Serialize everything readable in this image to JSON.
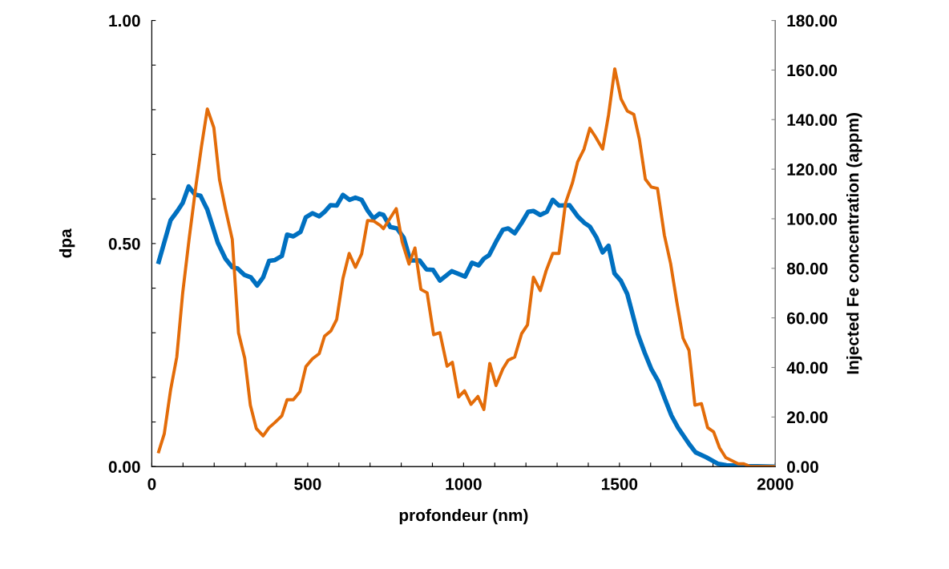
{
  "chart_data": {
    "type": "line",
    "xlabel": "profondeur (nm)",
    "ylabel": "dpa",
    "y2label": "Injected Fe concentration (appm)",
    "xlim": [
      0,
      2000
    ],
    "ylim": [
      0,
      1
    ],
    "y2lim": [
      0,
      180
    ],
    "xticks": [
      0,
      {
        "value": 100,
        "label": null
      },
      {
        "value": 200,
        "label": null
      },
      {
        "value": 300,
        "label": null
      },
      {
        "value": 400,
        "label": null
      },
      500,
      {
        "value": 600,
        "label": null
      },
      {
        "value": 700,
        "label": null
      },
      {
        "value": 800,
        "label": null
      },
      {
        "value": 900,
        "label": null
      },
      1000,
      {
        "value": 1100,
        "label": null
      },
      {
        "value": 1200,
        "label": null
      },
      {
        "value": 1300,
        "label": null
      },
      {
        "value": 1400,
        "label": null
      },
      1500,
      {
        "value": 1600,
        "label": null
      },
      {
        "value": 1700,
        "label": null
      },
      {
        "value": 1800,
        "label": null
      },
      {
        "value": 1900,
        "label": null
      },
      2000
    ],
    "yticks": [
      {
        "value": 0,
        "label": "0.00"
      },
      {
        "value": 0.1,
        "label": null
      },
      {
        "value": 0.2,
        "label": null
      },
      {
        "value": 0.3,
        "label": null
      },
      {
        "value": 0.4,
        "label": null
      },
      {
        "value": 0.5,
        "label": "0.50"
      },
      {
        "value": 0.6,
        "label": null
      },
      {
        "value": 0.7,
        "label": null
      },
      {
        "value": 0.8,
        "label": null
      },
      {
        "value": 0.9,
        "label": null
      },
      {
        "value": 1,
        "label": "1.00"
      }
    ],
    "y2ticks": [
      {
        "value": 0,
        "label": "0.00"
      },
      {
        "value": 20,
        "label": "20.00"
      },
      {
        "value": 40,
        "label": "40.00"
      },
      {
        "value": 60,
        "label": "60.00"
      },
      {
        "value": 80,
        "label": "80.00"
      },
      {
        "value": 100,
        "label": "100.00"
      },
      {
        "value": 120,
        "label": "120.00"
      },
      {
        "value": 140,
        "label": "140.00"
      },
      {
        "value": 160,
        "label": "160.00"
      },
      {
        "value": 180,
        "label": "180.00"
      }
    ],
    "grid": false,
    "legend": false,
    "marker": "none",
    "line_style": "solid",
    "series": [
      {
        "color": "#0070c0",
        "x": [
          22,
          60,
          82,
          99,
          118,
          138,
          156,
          178,
          212,
          236,
          258,
          275,
          296,
          318,
          338,
          357,
          376,
          395,
          417,
          434,
          454,
          477,
          494,
          515,
          537,
          554,
          573,
          593,
          613,
          634,
          653,
          673,
          692,
          711,
          730,
          743,
          765,
          786,
          808,
          829,
          859,
          881,
          902,
          924,
          962,
          1005,
          1027,
          1048,
          1065,
          1082,
          1104,
          1126,
          1143,
          1164,
          1186,
          1207,
          1224,
          1246,
          1267,
          1286,
          1306,
          1340,
          1366,
          1388,
          1405,
          1426,
          1446,
          1465,
          1484,
          1504,
          1525,
          1559,
          1581,
          1602,
          1624,
          1645,
          1667,
          1688,
          1723,
          1744,
          1778,
          1817,
          1843,
          1912,
          2000
        ],
        "values": [
          0.459,
          0.552,
          0.573,
          0.591,
          0.628,
          0.61,
          0.607,
          0.576,
          0.501,
          0.466,
          0.447,
          0.444,
          0.43,
          0.424,
          0.406,
          0.424,
          0.461,
          0.463,
          0.472,
          0.52,
          0.516,
          0.526,
          0.559,
          0.568,
          0.561,
          0.571,
          0.586,
          0.585,
          0.609,
          0.598,
          0.603,
          0.598,
          0.574,
          0.556,
          0.567,
          0.564,
          0.537,
          0.534,
          0.513,
          0.462,
          0.462,
          0.442,
          0.441,
          0.417,
          0.438,
          0.426,
          0.457,
          0.451,
          0.466,
          0.474,
          0.504,
          0.531,
          0.534,
          0.523,
          0.546,
          0.571,
          0.573,
          0.564,
          0.571,
          0.598,
          0.585,
          0.586,
          0.561,
          0.546,
          0.538,
          0.514,
          0.48,
          0.495,
          0.433,
          0.417,
          0.387,
          0.297,
          0.255,
          0.219,
          0.192,
          0.153,
          0.114,
          0.087,
          0.051,
          0.032,
          0.021,
          0.006,
          0.003,
          0.001,
          0
        ]
      },
      {
        "color": "#e36c09",
        "axis": "y2",
        "x": [
          22,
          40,
          60,
          80,
          99,
          120,
          142,
          159,
          178,
          199,
          217,
          236,
          258,
          278,
          298,
          316,
          335,
          357,
          376,
          395,
          417,
          434,
          454,
          475,
          494,
          515,
          537,
          554,
          574,
          593,
          613,
          633,
          653,
          673,
          692,
          711,
          733,
          743,
          784,
          803,
          825,
          844,
          863,
          883,
          904,
          924,
          947,
          964,
          984,
          1003,
          1024,
          1046,
          1065,
          1084,
          1104,
          1126,
          1143,
          1164,
          1186,
          1205,
          1224,
          1246,
          1265,
          1286,
          1306,
          1327,
          1349,
          1366,
          1386,
          1405,
          1422,
          1446,
          1465,
          1485,
          1505,
          1525,
          1546,
          1564,
          1583,
          1602,
          1622,
          1644,
          1664,
          1684,
          1704,
          1723,
          1742,
          1763,
          1783,
          1802,
          1821,
          1841,
          1881,
          1899,
          1920,
          2000
        ],
        "values": [
          6.0,
          13.3,
          30.8,
          44.2,
          70.1,
          92.3,
          113.8,
          129.0,
          144.3,
          136.7,
          115.8,
          104.1,
          91.7,
          54.0,
          43.7,
          24.8,
          15.4,
          12.4,
          15.7,
          17.8,
          20.5,
          27.0,
          27.0,
          30.2,
          40.3,
          43.5,
          45.6,
          52.6,
          54.7,
          59.4,
          75.9,
          86.0,
          80.4,
          85.8,
          99.3,
          99.1,
          97.3,
          96.0,
          104.1,
          90.6,
          81.7,
          88.2,
          71.5,
          70.1,
          53.2,
          54.0,
          40.5,
          42.1,
          28.1,
          30.6,
          25.1,
          28.3,
          23.0,
          41.6,
          32.7,
          39.4,
          42.9,
          44.2,
          53.6,
          57.2,
          76.4,
          71.0,
          79.1,
          86.0,
          86.0,
          106.3,
          114.4,
          123.0,
          128.0,
          136.5,
          133.3,
          128.1,
          141.9,
          160.5,
          148.4,
          143.5,
          142.1,
          132.0,
          116.0,
          112.8,
          112.2,
          93.4,
          82.0,
          66.4,
          51.8,
          46.9,
          24.8,
          25.4,
          15.7,
          14.0,
          7.6,
          3.6,
          1.1,
          1.1,
          0,
          0
        ]
      }
    ]
  }
}
